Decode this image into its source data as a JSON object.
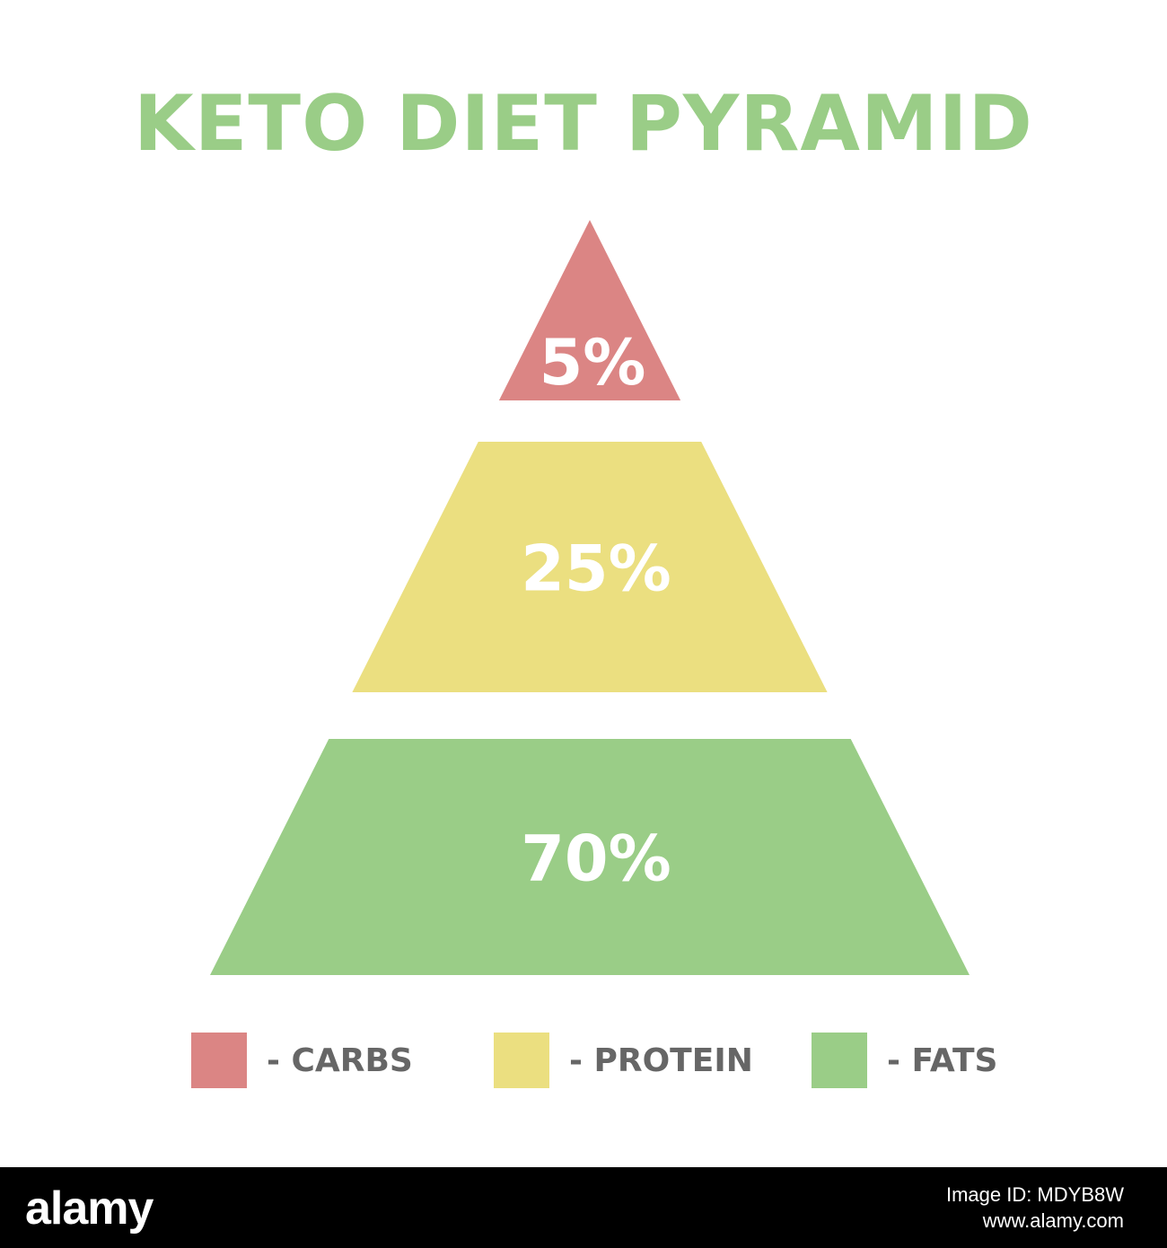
{
  "title": "KETO DIET PYRAMID",
  "chart_data": {
    "type": "pyramid",
    "title": "KETO DIET PYRAMID",
    "levels": [
      {
        "name": "CARBS",
        "value": 5,
        "label": "5%",
        "color": "#db8584"
      },
      {
        "name": "PROTEIN",
        "value": 25,
        "label": "25%",
        "color": "#ebdf80"
      },
      {
        "name": "FATS",
        "value": 70,
        "label": "70%",
        "color": "#9acd87"
      }
    ]
  },
  "legend": [
    {
      "label": "- CARBS",
      "color": "#db8584"
    },
    {
      "label": "- PROTEIN",
      "color": "#ebdf80"
    },
    {
      "label": "- FATS",
      "color": "#9acd87"
    }
  ],
  "footer": {
    "logo": "alamy",
    "image_id": "Image ID: MDYB8W",
    "site": "www.alamy.com"
  }
}
